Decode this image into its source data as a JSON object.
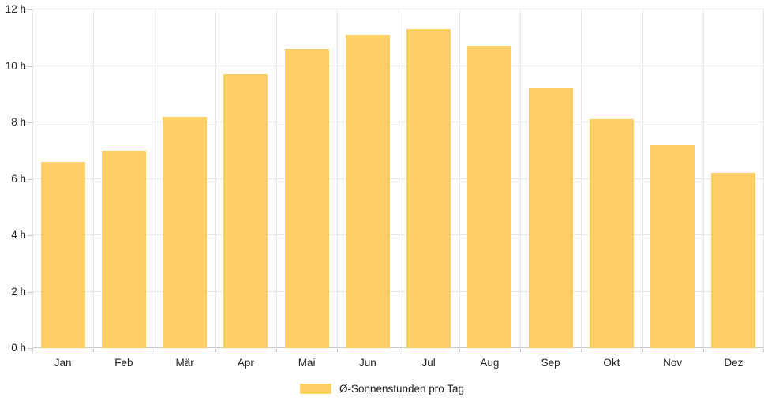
{
  "chart_data": {
    "type": "bar",
    "title": "",
    "xlabel": "",
    "ylabel": "",
    "categories": [
      "Jan",
      "Feb",
      "Mär",
      "Apr",
      "Mai",
      "Jun",
      "Jul",
      "Aug",
      "Sep",
      "Okt",
      "Nov",
      "Dez"
    ],
    "values": [
      6.6,
      7.0,
      8.2,
      9.7,
      10.6,
      11.1,
      11.3,
      10.7,
      9.2,
      8.1,
      7.2,
      6.2
    ],
    "value_unit": "h",
    "ylim": [
      0,
      12
    ],
    "y_tick_step": 2,
    "y_ticks": [
      "0 h",
      "2 h",
      "4 h",
      "6 h",
      "8 h",
      "10 h",
      "12 h"
    ],
    "grid": true,
    "legend_position": "bottom",
    "legend": [
      {
        "label": "Ø-Sonnenstunden pro Tag",
        "color": "#FCCE63"
      }
    ],
    "colors": {
      "bar": "#FCCE63",
      "grid": "#E6E6E6",
      "axis": "#C9C9C9",
      "text": "#222222",
      "background": "#FFFFFF"
    }
  }
}
